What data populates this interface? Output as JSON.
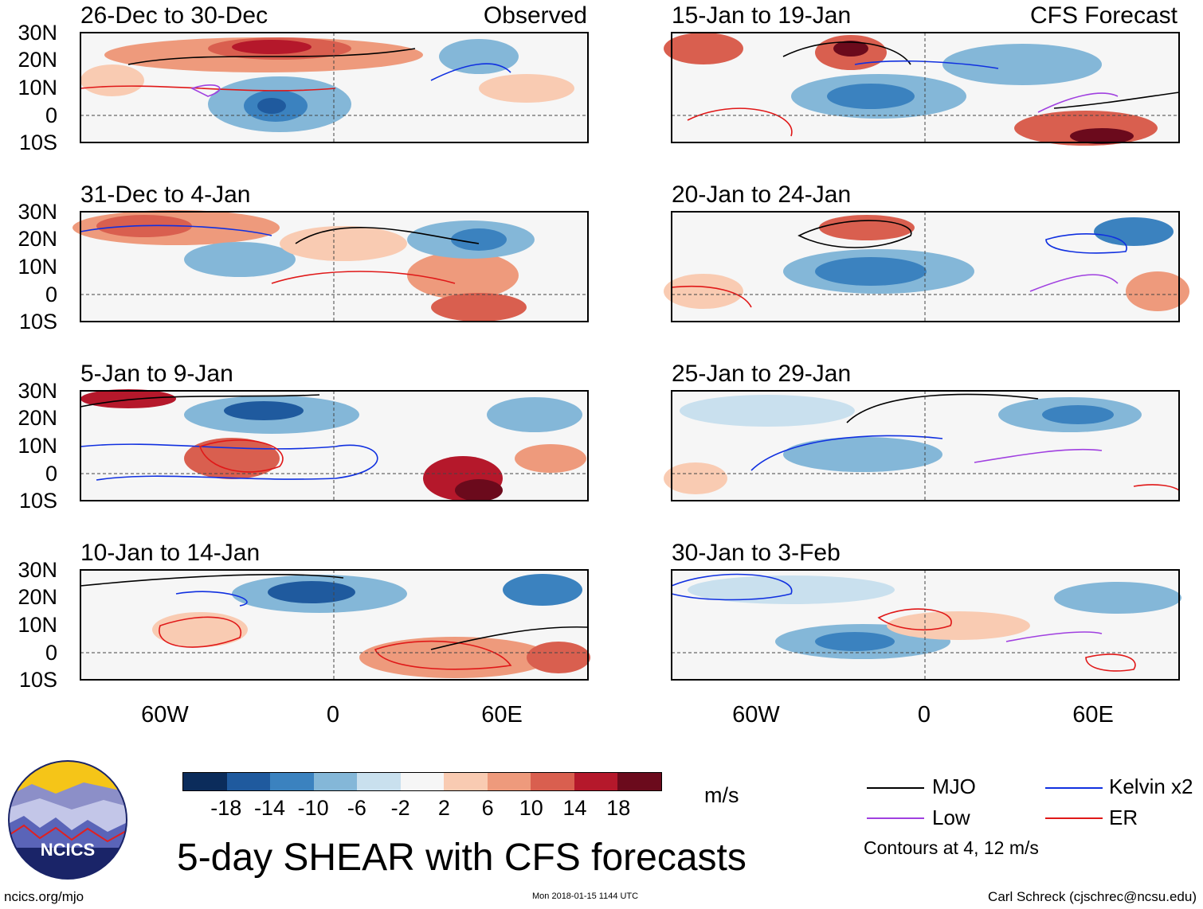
{
  "header": {
    "observed_label": "Observed",
    "forecast_label": "CFS Forecast"
  },
  "panels_left": [
    {
      "title": "26-Dec to 30-Dec"
    },
    {
      "title": "31-Dec to 4-Jan"
    },
    {
      "title": "5-Jan to 9-Jan"
    },
    {
      "title": "10-Jan to 14-Jan"
    }
  ],
  "panels_right": [
    {
      "title": "15-Jan to 19-Jan"
    },
    {
      "title": "20-Jan to 24-Jan"
    },
    {
      "title": "25-Jan to 29-Jan"
    },
    {
      "title": "30-Jan to 3-Feb"
    }
  ],
  "axes": {
    "lat_ticks": [
      "30N",
      "20N",
      "10N",
      "0",
      "10S"
    ],
    "lon_ticks": [
      "60W",
      "0",
      "60E"
    ]
  },
  "colorbar": {
    "labels": [
      "-18",
      "-14",
      "-10",
      "-6",
      "-2",
      "2",
      "6",
      "10",
      "14",
      "18"
    ],
    "colors": [
      "#0b2c5b",
      "#1f5a9e",
      "#3b82bf",
      "#84b7d8",
      "#c9e0ee",
      "#f6f6f6",
      "#f9cbb2",
      "#ee9a7c",
      "#d95f4f",
      "#b5182b",
      "#6b0a1c"
    ],
    "units": "m/s"
  },
  "legend": {
    "mjo": "MJO",
    "kelvin": "Kelvin x2",
    "low": "Low",
    "er": "ER",
    "note": "Contours at 4, 12 m/s",
    "colors": {
      "mjo": "#000000",
      "kelvin": "#1030e0",
      "low": "#a040e0",
      "er": "#e01818"
    }
  },
  "title": "5-day SHEAR with CFS forecasts",
  "footer": {
    "site": "ncics.org/mjo",
    "timestamp": "Mon 2018-01-15 1144 UTC",
    "author": "Carl Schreck (cjschrec@ncsu.edu)"
  },
  "logo": {
    "text": "NCICS"
  }
}
